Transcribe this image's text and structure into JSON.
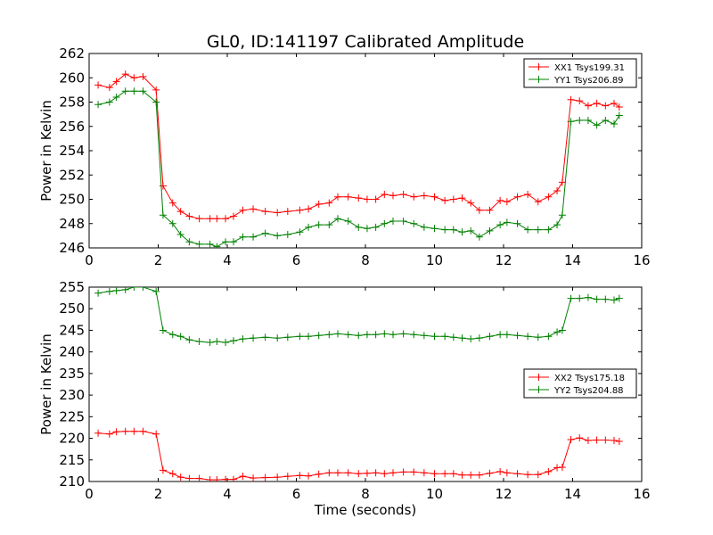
{
  "title": "GL0, ID:141197 Calibrated Amplitude",
  "colors": {
    "red": "#ff0000",
    "green": "#008000"
  },
  "chart_data": [
    {
      "type": "line",
      "title": "GL0, ID:141197 Calibrated Amplitude",
      "xlabel": "",
      "ylabel": "Power in Kelvin",
      "xlim": [
        0,
        16
      ],
      "ylim": [
        246,
        262
      ],
      "xticks": [
        0,
        2,
        4,
        6,
        8,
        10,
        12,
        14,
        16
      ],
      "yticks": [
        246,
        248,
        250,
        252,
        254,
        256,
        258,
        260,
        262
      ],
      "legend_position": "top-right",
      "x": [
        0.26,
        0.59,
        0.79,
        1.05,
        1.3,
        1.56,
        1.94,
        2.14,
        2.42,
        2.65,
        2.9,
        3.19,
        3.5,
        3.7,
        3.95,
        4.18,
        4.45,
        4.75,
        5.1,
        5.45,
        5.75,
        6.1,
        6.35,
        6.65,
        6.95,
        7.2,
        7.5,
        7.8,
        8.05,
        8.3,
        8.55,
        8.8,
        9.1,
        9.4,
        9.7,
        10.0,
        10.3,
        10.55,
        10.8,
        11.05,
        11.3,
        11.6,
        11.9,
        12.1,
        12.4,
        12.7,
        13.0,
        13.3,
        13.55,
        13.7,
        13.95,
        14.2,
        14.45,
        14.7,
        14.95,
        15.2,
        15.35
      ],
      "series": [
        {
          "name": "XX1 Tsys199.31",
          "color": "#ff0000",
          "values": [
            259.4,
            259.2,
            259.7,
            260.3,
            260.0,
            260.1,
            259.0,
            251.1,
            249.7,
            249.0,
            248.6,
            248.4,
            248.4,
            248.4,
            248.4,
            248.6,
            249.1,
            249.2,
            249.0,
            248.9,
            249.0,
            249.1,
            249.2,
            249.6,
            249.7,
            250.2,
            250.2,
            250.1,
            250.0,
            250.0,
            250.4,
            250.3,
            250.4,
            250.2,
            250.3,
            250.2,
            249.9,
            250.0,
            250.1,
            249.7,
            249.1,
            249.1,
            249.9,
            249.8,
            250.2,
            250.4,
            249.8,
            250.2,
            250.7,
            251.4,
            258.2,
            258.1,
            257.7,
            257.9,
            257.7,
            257.9,
            257.6
          ]
        },
        {
          "name": "YY1 Tsys206.89",
          "color": "#008000",
          "values": [
            257.8,
            258.0,
            258.4,
            258.9,
            258.9,
            258.9,
            258.0,
            248.7,
            248.0,
            247.1,
            246.5,
            246.3,
            246.3,
            246.1,
            246.5,
            246.5,
            246.9,
            246.9,
            247.2,
            247.0,
            247.1,
            247.3,
            247.7,
            247.9,
            247.9,
            248.4,
            248.2,
            247.7,
            247.6,
            247.7,
            248.0,
            248.2,
            248.2,
            248.0,
            247.7,
            247.6,
            247.5,
            247.5,
            247.3,
            247.4,
            246.9,
            247.4,
            247.9,
            248.1,
            248.0,
            247.5,
            247.5,
            247.5,
            247.9,
            248.7,
            256.4,
            256.5,
            256.5,
            256.1,
            256.5,
            256.2,
            256.9
          ]
        }
      ]
    },
    {
      "type": "line",
      "title": "",
      "xlabel": "Time (seconds)",
      "ylabel": "Power in Kelvin",
      "xlim": [
        0,
        16
      ],
      "ylim": [
        210,
        255
      ],
      "xticks": [
        0,
        2,
        4,
        6,
        8,
        10,
        12,
        14,
        16
      ],
      "yticks": [
        210,
        215,
        220,
        225,
        230,
        235,
        240,
        245,
        250,
        255
      ],
      "legend_position": "center-right",
      "x": [
        0.26,
        0.59,
        0.79,
        1.05,
        1.3,
        1.56,
        1.94,
        2.14,
        2.42,
        2.65,
        2.9,
        3.19,
        3.5,
        3.7,
        3.95,
        4.18,
        4.45,
        4.75,
        5.1,
        5.45,
        5.75,
        6.1,
        6.35,
        6.65,
        6.95,
        7.2,
        7.5,
        7.8,
        8.05,
        8.3,
        8.55,
        8.8,
        9.1,
        9.4,
        9.7,
        10.0,
        10.3,
        10.55,
        10.8,
        11.05,
        11.3,
        11.6,
        11.9,
        12.1,
        12.4,
        12.7,
        13.0,
        13.3,
        13.55,
        13.7,
        13.95,
        14.2,
        14.45,
        14.7,
        14.95,
        15.2,
        15.35
      ],
      "series": [
        {
          "name": "XX2 Tsys175.18",
          "color": "#ff0000",
          "values": [
            221.2,
            221.0,
            221.5,
            221.6,
            221.6,
            221.6,
            221.0,
            212.6,
            211.8,
            211.0,
            210.7,
            210.7,
            210.4,
            210.4,
            210.5,
            210.5,
            211.2,
            210.8,
            210.9,
            211.0,
            211.2,
            211.4,
            211.3,
            211.7,
            212.0,
            212.0,
            212.0,
            211.8,
            211.9,
            212.0,
            211.8,
            212.0,
            212.2,
            212.2,
            212.0,
            211.8,
            211.8,
            211.8,
            211.5,
            211.5,
            211.5,
            211.9,
            212.3,
            212.0,
            211.8,
            211.6,
            211.6,
            212.3,
            213.2,
            213.3,
            219.7,
            220.1,
            219.5,
            219.6,
            219.6,
            219.5,
            219.3
          ]
        },
        {
          "name": "YY2 Tsys204.88",
          "color": "#008000",
          "values": [
            253.6,
            254.0,
            254.2,
            254.4,
            255.0,
            255.0,
            254.0,
            245.0,
            244.0,
            243.6,
            242.8,
            242.4,
            242.2,
            242.4,
            242.2,
            242.6,
            243.0,
            243.2,
            243.4,
            243.2,
            243.4,
            243.6,
            243.6,
            243.8,
            244.0,
            244.2,
            244.0,
            243.8,
            244.0,
            244.0,
            244.2,
            244.0,
            244.2,
            244.0,
            243.8,
            243.6,
            243.6,
            243.4,
            243.2,
            243.0,
            243.2,
            243.6,
            244.0,
            244.0,
            243.8,
            243.6,
            243.4,
            243.6,
            244.6,
            245.0,
            252.4,
            252.4,
            252.6,
            252.2,
            252.2,
            252.0,
            252.4
          ]
        }
      ]
    }
  ]
}
